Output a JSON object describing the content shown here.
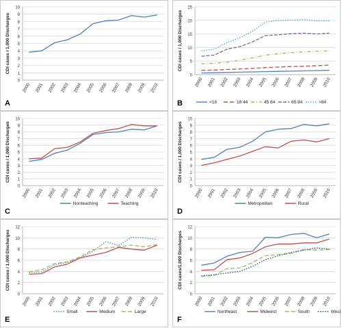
{
  "chart_data": [
    {
      "panel": "A",
      "type": "line",
      "ylabel": "CDI cases / 1,000 Discharges",
      "x": [
        "2000",
        "2001",
        "2002",
        "2003",
        "2004",
        "2005",
        "2006",
        "2007",
        "2008",
        "2009",
        "2010"
      ],
      "ylim": [
        0,
        10
      ],
      "yticks": [
        0,
        1,
        2,
        3,
        4,
        5,
        6,
        7,
        8,
        9,
        10
      ],
      "legend": "none",
      "series": [
        {
          "color": "#4f81bd",
          "dash": "",
          "values": [
            3.8,
            4.0,
            5.1,
            5.5,
            6.3,
            7.7,
            8.1,
            8.2,
            8.8,
            8.6,
            8.9
          ]
        }
      ]
    },
    {
      "panel": "B",
      "type": "line",
      "ylabel": "CDI cases / 1,000 Discharges",
      "x": [
        "2000",
        "2001",
        "2002",
        "2003",
        "2004",
        "2005",
        "2006",
        "2007",
        "2008",
        "2009",
        "2010"
      ],
      "ylim": [
        0,
        25
      ],
      "yticks": [
        0,
        5,
        10,
        15,
        20,
        25
      ],
      "legend": "bottom",
      "series": [
        {
          "name": "<18",
          "color": "#4f81bd",
          "dash": "",
          "values": [
            0.6,
            0.7,
            0.8,
            0.9,
            1.0,
            1.1,
            1.2,
            1.3,
            1.4,
            1.5,
            1.6
          ]
        },
        {
          "name": "18 44",
          "color": "#c0504d",
          "dash": "6,3",
          "values": [
            1.6,
            1.7,
            1.9,
            2.1,
            2.3,
            2.6,
            2.8,
            3.0,
            3.1,
            3.3,
            3.5
          ]
        },
        {
          "name": "45 64",
          "color": "#9bbb59",
          "dash": "5,3,1,3",
          "values": [
            4.0,
            4.2,
            4.6,
            5.3,
            6.2,
            7.2,
            7.7,
            8.1,
            8.4,
            8.6,
            8.8
          ]
        },
        {
          "name": "65 84",
          "color": "#8064a2",
          "dash": "5,2",
          "values": [
            6.8,
            7.2,
            9.4,
            10.3,
            12.1,
            14.4,
            14.7,
            15.1,
            15.3,
            15.0,
            15.3
          ]
        },
        {
          "name": ">84",
          "color": "#4bacc6",
          "dash": "1.5,2",
          "values": [
            8.8,
            9.4,
            11.8,
            13.6,
            16.0,
            19.4,
            20.0,
            20.1,
            20.3,
            19.8,
            19.9
          ]
        }
      ]
    },
    {
      "panel": "C",
      "type": "line",
      "ylabel": "CDI cases / 1,000 Discharges",
      "x": [
        "2000",
        "2001",
        "2002",
        "2003",
        "2004",
        "2005",
        "2006",
        "2007",
        "2008",
        "2009",
        "2010"
      ],
      "ylim": [
        0,
        10
      ],
      "yticks": [
        0,
        1,
        2,
        3,
        4,
        5,
        6,
        7,
        8,
        9,
        10
      ],
      "legend": "bottom",
      "series": [
        {
          "name": "Nonteaching",
          "color": "#4f81bd",
          "dash": "",
          "values": [
            3.6,
            3.9,
            4.8,
            5.3,
            6.3,
            7.6,
            7.9,
            8.0,
            8.4,
            8.3,
            8.9
          ]
        },
        {
          "name": "Teaching",
          "color": "#c0504d",
          "dash": "",
          "values": [
            4.0,
            4.1,
            5.5,
            5.7,
            6.5,
            7.8,
            8.2,
            8.5,
            9.1,
            8.9,
            8.9
          ]
        }
      ]
    },
    {
      "panel": "D",
      "type": "line",
      "ylabel": "CDI cases / 1,000 Discharges",
      "x": [
        "2000",
        "2001",
        "2002",
        "2003",
        "2004",
        "2005",
        "2006",
        "2007",
        "2008",
        "2009",
        "2010"
      ],
      "ylim": [
        0,
        10
      ],
      "yticks": [
        0,
        1,
        2,
        3,
        4,
        5,
        6,
        7,
        8,
        9,
        10
      ],
      "legend": "bottom",
      "series": [
        {
          "name": "Metropolitan",
          "color": "#4f81bd",
          "dash": "",
          "values": [
            3.9,
            4.2,
            5.4,
            5.7,
            6.6,
            8.0,
            8.4,
            8.5,
            9.1,
            8.9,
            9.2
          ]
        },
        {
          "name": "Rural",
          "color": "#c0504d",
          "dash": "",
          "values": [
            3.0,
            3.4,
            3.9,
            4.4,
            5.1,
            5.8,
            5.6,
            6.6,
            6.8,
            6.5,
            7.0
          ]
        }
      ]
    },
    {
      "panel": "E",
      "type": "line",
      "ylabel": "CDI cases / 1,000 Discharges",
      "x": [
        "2000",
        "2001",
        "2002",
        "2003",
        "2004",
        "2005",
        "2006",
        "2007",
        "2008",
        "2009",
        "2010"
      ],
      "ylim": [
        0,
        12
      ],
      "yticks": [
        0,
        2,
        4,
        6,
        8,
        10,
        12
      ],
      "legend": "bottom",
      "series": [
        {
          "name": "Small",
          "color": "#4f81bd",
          "dash": "1.5,2",
          "values": [
            3.8,
            3.9,
            5.2,
            5.6,
            6.4,
            7.6,
            9.3,
            8.6,
            10.1,
            10.0,
            9.7
          ]
        },
        {
          "name": "Medium",
          "color": "#c0504d",
          "dash": "",
          "values": [
            3.5,
            3.6,
            4.8,
            5.3,
            6.4,
            6.9,
            7.4,
            8.3,
            8.0,
            7.8,
            8.7
          ]
        },
        {
          "name": "Large",
          "color": "#9bbb59",
          "dash": "6,3",
          "values": [
            3.9,
            4.3,
            5.4,
            5.7,
            6.6,
            7.9,
            8.2,
            8.4,
            8.7,
            8.4,
            8.8
          ]
        }
      ]
    },
    {
      "panel": "F",
      "type": "line",
      "ylabel": "CDI cases/1,000 Discharges",
      "x": [
        "2000",
        "2001",
        "2002",
        "2003",
        "2004",
        "2005",
        "2006",
        "2007",
        "2008",
        "2009",
        "2010"
      ],
      "ylim": [
        0,
        12
      ],
      "yticks": [
        0,
        2,
        4,
        6,
        8,
        10,
        12
      ],
      "legend": "bottom",
      "series": [
        {
          "name": "Northeast",
          "color": "#4f81bd",
          "dash": "",
          "values": [
            5.1,
            5.5,
            6.7,
            7.4,
            7.6,
            10.1,
            10.0,
            10.6,
            10.8,
            10.0,
            10.7
          ]
        },
        {
          "name": "Midwest",
          "color": "#c0504d",
          "dash": "",
          "values": [
            4.2,
            4.3,
            6.1,
            6.4,
            7.2,
            8.4,
            8.9,
            8.9,
            9.1,
            9.1,
            9.8
          ]
        },
        {
          "name": "South",
          "color": "#9bbb59",
          "dash": "6,3",
          "values": [
            3.1,
            3.3,
            4.5,
            4.6,
            5.6,
            6.8,
            7.0,
            7.2,
            7.9,
            7.8,
            7.9
          ]
        },
        {
          "name": "West",
          "color": "#1f497d",
          "dash": "1.5,2",
          "values": [
            3.2,
            3.4,
            3.7,
            4.0,
            4.9,
            6.1,
            6.8,
            7.4,
            7.8,
            8.2,
            8.0
          ]
        }
      ]
    }
  ]
}
